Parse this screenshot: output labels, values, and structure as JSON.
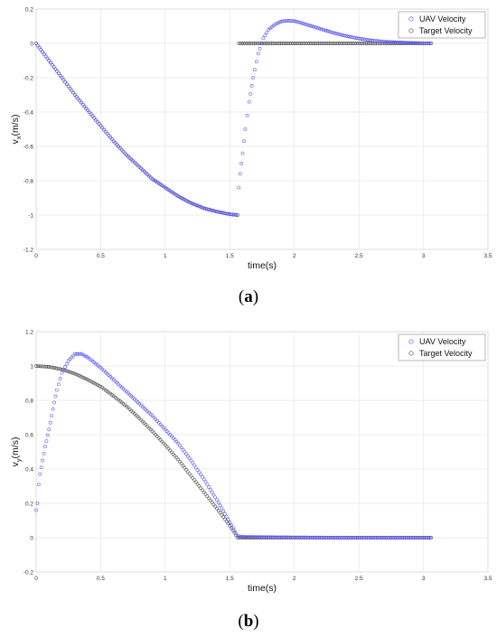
{
  "charts": [
    {
      "id": "a",
      "caption_letter": "a",
      "chart_data": {
        "type": "scatter",
        "xlabel": "time(s)",
        "ylabel_main": "v",
        "ylabel_sub": "x",
        "ylabel_unit": "(m/s)",
        "xlim": [
          0,
          3.5
        ],
        "ylim": [
          -1.2,
          0.2
        ],
        "xticks": [
          0,
          0.5,
          1,
          1.5,
          2,
          2.5,
          3,
          3.5
        ],
        "xtick_labels": [
          "0",
          "0.5",
          "1",
          "1.5",
          "2",
          "2.5",
          "3",
          "3.5"
        ],
        "yticks": [
          -1.2,
          -1,
          -0.8,
          -0.6,
          -0.4,
          -0.2,
          0,
          0.2
        ],
        "ytick_labels": [
          "-1.2",
          "-1",
          "-0.8",
          "-0.6",
          "-0.4",
          "-0.2",
          "0",
          "0.2"
        ],
        "grid": true,
        "legend_position": "top-right",
        "series": [
          {
            "name": "UAV Velocity",
            "color": "#5a5af0",
            "x": [
              0,
              0.05,
              0.1,
              0.2,
              0.3,
              0.4,
              0.5,
              0.6,
              0.7,
              0.8,
              0.9,
              1.0,
              1.1,
              1.2,
              1.3,
              1.4,
              1.5,
              1.56,
              1.57,
              1.58,
              1.6,
              1.62,
              1.65,
              1.68,
              1.72,
              1.76,
              1.8,
              1.85,
              1.9,
              1.95,
              2.0,
              2.05,
              2.1,
              2.2,
              2.3,
              2.4,
              2.5,
              2.6,
              2.7,
              2.8,
              2.9,
              3.0,
              3.06
            ],
            "y": [
              0,
              -0.05,
              -0.1,
              -0.2,
              -0.3,
              -0.39,
              -0.48,
              -0.57,
              -0.65,
              -0.72,
              -0.79,
              -0.84,
              -0.89,
              -0.93,
              -0.96,
              -0.98,
              -0.995,
              -1.0,
              -0.84,
              -0.76,
              -0.64,
              -0.5,
              -0.34,
              -0.2,
              -0.06,
              0.03,
              0.08,
              0.11,
              0.128,
              0.132,
              0.13,
              0.12,
              0.108,
              0.085,
              0.062,
              0.043,
              0.028,
              0.017,
              0.01,
              0.006,
              0.003,
              0.001,
              0.0
            ]
          },
          {
            "name": "Target Velocity",
            "color": "#555555",
            "x": [
              0,
              0.05,
              0.1,
              0.2,
              0.3,
              0.4,
              0.5,
              0.6,
              0.7,
              0.8,
              0.9,
              1.0,
              1.1,
              1.2,
              1.3,
              1.4,
              1.5,
              1.56,
              1.57,
              1.8,
              2.0,
              2.2,
              2.4,
              2.6,
              2.8,
              3.0,
              3.06
            ],
            "y": [
              0,
              -0.05,
              -0.1,
              -0.2,
              -0.3,
              -0.39,
              -0.48,
              -0.57,
              -0.65,
              -0.72,
              -0.79,
              -0.84,
              -0.89,
              -0.93,
              -0.96,
              -0.98,
              -0.995,
              -1.0,
              0,
              0,
              0,
              0,
              0,
              0,
              0,
              0,
              0
            ]
          }
        ]
      }
    },
    {
      "id": "b",
      "caption_letter": "b",
      "chart_data": {
        "type": "scatter",
        "xlabel": "time(s)",
        "ylabel_main": "v",
        "ylabel_sub": "y",
        "ylabel_unit": "(m/s)",
        "xlim": [
          0,
          3.5
        ],
        "ylim": [
          -0.2,
          1.2
        ],
        "xticks": [
          0,
          0.5,
          1,
          1.5,
          2,
          2.5,
          3,
          3.5
        ],
        "xtick_labels": [
          "0",
          "0.5",
          "1",
          "1.5",
          "2",
          "2.5",
          "3",
          "3.5"
        ],
        "yticks": [
          -0.2,
          0,
          0.2,
          0.4,
          0.6,
          0.8,
          1,
          1.2
        ],
        "ytick_labels": [
          "-0.2",
          "0",
          "0.2",
          "0.4",
          "0.6",
          "0.8",
          "1",
          "1.2"
        ],
        "grid": true,
        "legend_position": "top-right",
        "series": [
          {
            "name": "UAV Velocity",
            "color": "#5a5af0",
            "x": [
              0,
              0.01,
              0.02,
              0.03,
              0.05,
              0.07,
              0.1,
              0.13,
              0.16,
              0.2,
              0.25,
              0.3,
              0.35,
              0.4,
              0.5,
              0.6,
              0.7,
              0.8,
              0.9,
              1.0,
              1.1,
              1.2,
              1.3,
              1.4,
              1.5,
              1.56,
              1.6,
              1.8,
              2.0,
              2.2,
              2.4,
              2.6,
              2.8,
              3.0,
              3.06
            ],
            "y": [
              0.16,
              0.2,
              0.31,
              0.37,
              0.45,
              0.53,
              0.63,
              0.75,
              0.86,
              0.96,
              1.03,
              1.07,
              1.07,
              1.05,
              0.99,
              0.92,
              0.85,
              0.78,
              0.71,
              0.63,
              0.55,
              0.45,
              0.34,
              0.22,
              0.09,
              0.01,
              0.005,
              0.003,
              0.002,
              0.001,
              0.0,
              0.0,
              0.0,
              0.0,
              0.0
            ]
          },
          {
            "name": "Target Velocity",
            "color": "#555555",
            "x": [
              0,
              0.1,
              0.2,
              0.3,
              0.4,
              0.5,
              0.6,
              0.7,
              0.8,
              0.9,
              1.0,
              1.1,
              1.2,
              1.3,
              1.4,
              1.5,
              1.56,
              1.8,
              2.0,
              2.2,
              2.4,
              2.6,
              2.8,
              3.0,
              3.06
            ],
            "y": [
              1.0,
              0.995,
              0.98,
              0.955,
              0.92,
              0.88,
              0.825,
              0.765,
              0.695,
              0.62,
              0.54,
              0.455,
              0.36,
              0.265,
              0.17,
              0.07,
              0.0,
              0,
              0,
              0,
              0,
              0,
              0,
              0,
              0
            ]
          }
        ]
      }
    }
  ]
}
